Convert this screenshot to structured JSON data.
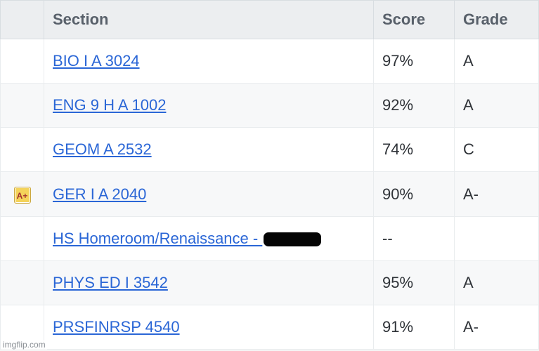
{
  "header": {
    "section": "Section",
    "score": "Score",
    "grade": "Grade"
  },
  "rows": [
    {
      "badge": "",
      "section": "BIO I A 3024",
      "score": "97%",
      "grade": "A",
      "alt": false,
      "redact": false
    },
    {
      "badge": "",
      "section": "ENG 9 H A 1002",
      "score": "92%",
      "grade": "A",
      "alt": true,
      "redact": false
    },
    {
      "badge": "",
      "section": "GEOM A 2532",
      "score": "74%",
      "grade": "C",
      "alt": false,
      "redact": false
    },
    {
      "badge": "A+",
      "section": "GER I A 2040",
      "score": "90%",
      "grade": "A-",
      "alt": true,
      "redact": false
    },
    {
      "badge": "",
      "section": "HS Homeroom/Renaissance - ",
      "score": "--",
      "grade": "",
      "alt": false,
      "redact": true
    },
    {
      "badge": "",
      "section": "PHYS ED I 3542",
      "score": "95%",
      "grade": "A",
      "alt": true,
      "redact": false
    },
    {
      "badge": "",
      "section": "PRSFINRSP 4540",
      "score": "91%",
      "grade": "A-",
      "alt": false,
      "redact": false
    }
  ],
  "watermark": "imgflip.com",
  "style": {
    "link_color": "#2a66d6",
    "header_bg": "#eceef0",
    "header_text": "#58606a",
    "cell_text": "#393e44",
    "row_alt_bg": "#f7f8f9",
    "border_color": "#d8dde1",
    "badge_bg": "#f4d35a",
    "badge_text": "#a3302e",
    "font_size_header": 22,
    "font_size_cell": 22
  }
}
